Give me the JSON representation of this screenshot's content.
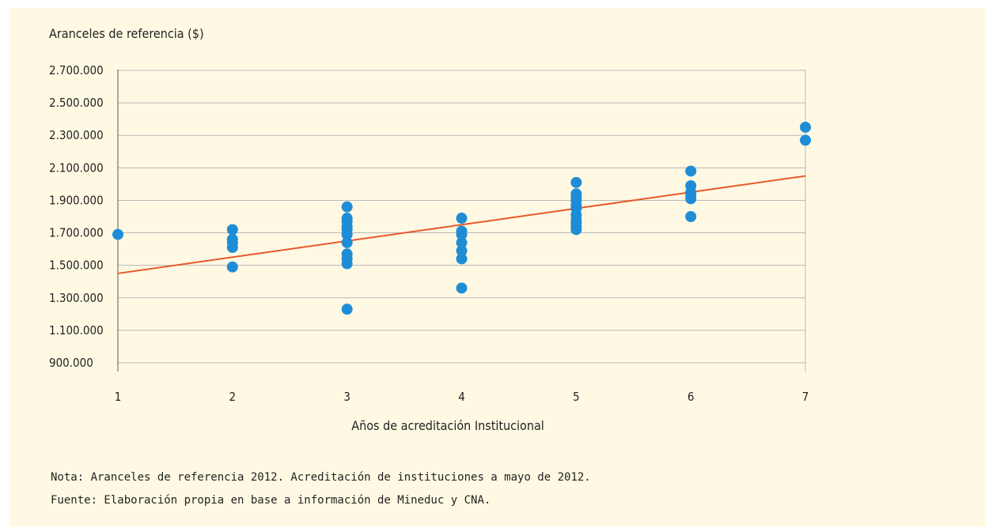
{
  "chart_data": {
    "type": "scatter",
    "ylabel": "Aranceles de referencia ($)",
    "xlabel": "Años de acreditación Institucional",
    "x_ticks": [
      1,
      2,
      3,
      4,
      5,
      6,
      7
    ],
    "y_ticks": [
      900000,
      1100000,
      1300000,
      1500000,
      1700000,
      1900000,
      2100000,
      2300000,
      2500000,
      2700000
    ],
    "y_tick_labels": [
      "900.000",
      "1.100.000",
      "1.300.000",
      "1.500.000",
      "1.700.000",
      "1.900.000",
      "2.100.000",
      "2.300.000",
      "2.500.000",
      "2.700.000"
    ],
    "xlim": [
      1,
      7
    ],
    "ylim": [
      800000,
      2800000
    ],
    "grid": "horizontal",
    "point_color": "#1f8dd6",
    "trend_color": "#e8582a",
    "series": [
      {
        "points": [
          [
            1,
            1690000
          ],
          [
            2,
            1720000
          ],
          [
            2,
            1660000
          ],
          [
            2,
            1640000
          ],
          [
            2,
            1610000
          ],
          [
            2,
            1490000
          ],
          [
            3,
            1860000
          ],
          [
            3,
            1790000
          ],
          [
            3,
            1770000
          ],
          [
            3,
            1740000
          ],
          [
            3,
            1720000
          ],
          [
            3,
            1690000
          ],
          [
            3,
            1640000
          ],
          [
            3,
            1570000
          ],
          [
            3,
            1540000
          ],
          [
            3,
            1510000
          ],
          [
            3,
            1230000
          ],
          [
            4,
            1790000
          ],
          [
            4,
            1710000
          ],
          [
            4,
            1690000
          ],
          [
            4,
            1640000
          ],
          [
            4,
            1590000
          ],
          [
            4,
            1540000
          ],
          [
            4,
            1360000
          ],
          [
            5,
            2010000
          ],
          [
            5,
            1940000
          ],
          [
            5,
            1920000
          ],
          [
            5,
            1900000
          ],
          [
            5,
            1870000
          ],
          [
            5,
            1850000
          ],
          [
            5,
            1810000
          ],
          [
            5,
            1780000
          ],
          [
            5,
            1760000
          ],
          [
            5,
            1740000
          ],
          [
            5,
            1720000
          ],
          [
            6,
            2080000
          ],
          [
            6,
            1990000
          ],
          [
            6,
            1950000
          ],
          [
            6,
            1930000
          ],
          [
            6,
            1910000
          ],
          [
            6,
            1800000
          ],
          [
            7,
            2350000
          ],
          [
            7,
            2270000
          ]
        ]
      }
    ],
    "trendline": {
      "x": [
        1,
        7
      ],
      "y": [
        1450000,
        2050000
      ]
    }
  },
  "notes": {
    "nota": "Nota: Aranceles de referencia 2012. Acreditación de instituciones a mayo de 2012.",
    "fuente": "Fuente: Elaboración propia en base a información de Mineduc y CNA."
  }
}
